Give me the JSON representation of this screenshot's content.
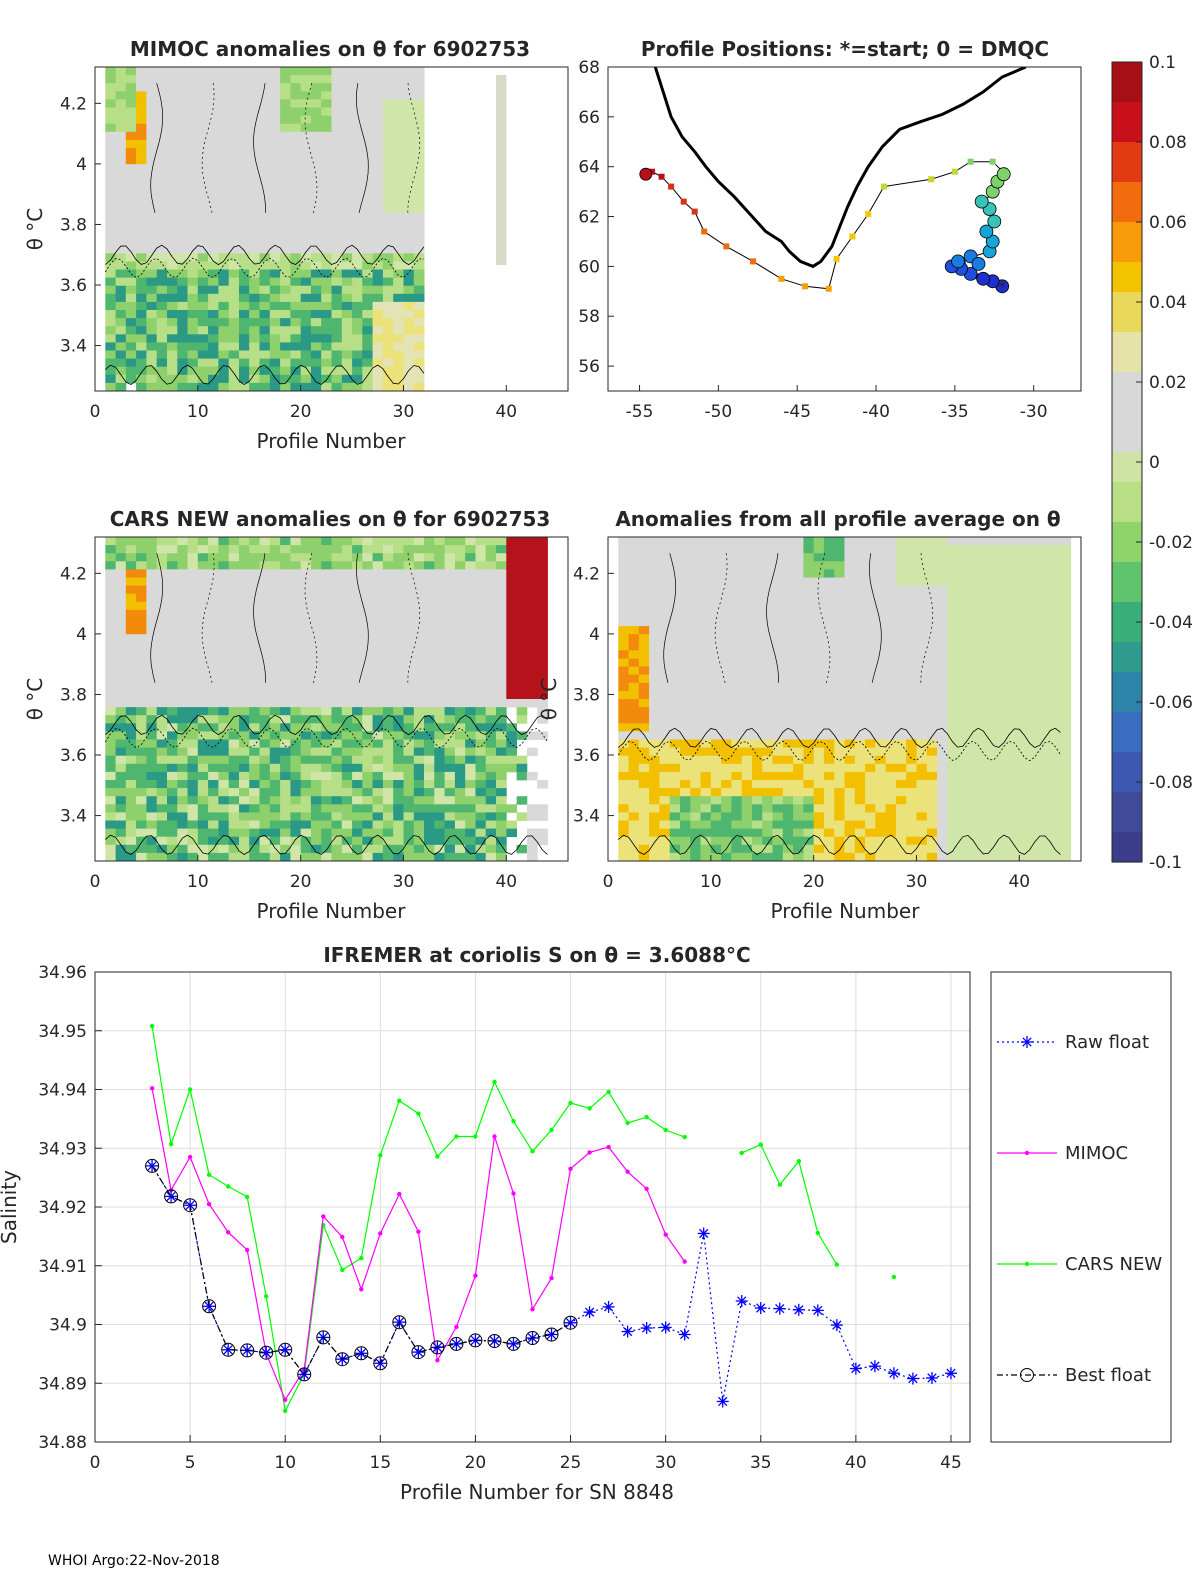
{
  "footer": "WHOI Argo:22-Nov-2018",
  "panels": {
    "mimoc": {
      "title": "MIMOC anomalies on θ  for 6902753",
      "xlabel": "Profile Number",
      "ylabel": "θ °C",
      "xlim": [
        0,
        46
      ],
      "ylim": [
        3.25,
        4.32
      ],
      "xticks": [
        "0",
        "10",
        "20",
        "30",
        "40"
      ],
      "yticks": [
        "3.4",
        "3.6",
        "3.8",
        "4",
        "4.2"
      ]
    },
    "positions": {
      "title": "Profile Positions: *=start; 0 = DMQC",
      "xticks": [
        "-55",
        "-50",
        "-45",
        "-40",
        "-35",
        "-30"
      ],
      "yticks": [
        "56",
        "58",
        "60",
        "62",
        "64",
        "66",
        "68"
      ],
      "xlim": [
        -57,
        -27
      ],
      "ylim": [
        55,
        68
      ],
      "track": [
        [
          -32,
          59.2
        ],
        [
          -32.5,
          59.4
        ],
        [
          -33.5,
          59.6
        ],
        [
          -34.2,
          59.8
        ],
        [
          -35.0,
          60.0
        ],
        [
          -34.5,
          60.2
        ],
        [
          -33.8,
          60.4
        ],
        [
          -32.8,
          60.6
        ],
        [
          -32.5,
          61.0
        ],
        [
          -33.0,
          61.4
        ],
        [
          -32.4,
          61.8
        ],
        [
          -32.8,
          62.3
        ],
        [
          -33.2,
          62.6
        ],
        [
          -32.5,
          63.0
        ],
        [
          -32.2,
          63.4
        ],
        [
          -31.8,
          63.7
        ],
        [
          -32.6,
          64.2
        ],
        [
          -34.0,
          64.2
        ],
        [
          -35.0,
          63.8
        ],
        [
          -36.5,
          63.5
        ],
        [
          -39.5,
          63.2
        ],
        [
          -40.5,
          62.1
        ],
        [
          -41.5,
          61.2
        ],
        [
          -42.5,
          60.3
        ],
        [
          -43.0,
          59.1
        ],
        [
          -44.5,
          59.2
        ],
        [
          -46.0,
          59.5
        ],
        [
          -47.8,
          60.2
        ],
        [
          -49.5,
          60.8
        ],
        [
          -50.9,
          61.4
        ],
        [
          -51.5,
          62.2
        ],
        [
          -52.2,
          62.6
        ],
        [
          -53.0,
          63.2
        ],
        [
          -53.6,
          63.6
        ],
        [
          -54.2,
          63.8
        ],
        [
          -54.6,
          63.7
        ]
      ],
      "stations": [
        [
          -32,
          59.2
        ],
        [
          -32.6,
          59.4
        ],
        [
          -33.2,
          59.5
        ],
        [
          -34.0,
          59.7
        ],
        [
          -34.6,
          59.9
        ],
        [
          -35.2,
          60.0
        ],
        [
          -34.8,
          60.2
        ],
        [
          -34.0,
          60.4
        ],
        [
          -33.5,
          60.1
        ],
        [
          -32.8,
          60.6
        ],
        [
          -32.6,
          61.0
        ],
        [
          -33.0,
          61.4
        ],
        [
          -32.5,
          61.8
        ],
        [
          -32.8,
          62.3
        ],
        [
          -33.3,
          62.6
        ],
        [
          -32.6,
          63.0
        ],
        [
          -32.3,
          63.4
        ],
        [
          -31.9,
          63.7
        ]
      ],
      "coast": [
        [
          -54,
          68
        ],
        [
          -53.5,
          67
        ],
        [
          -53,
          66
        ],
        [
          -52.3,
          65.2
        ],
        [
          -51.5,
          64.6
        ],
        [
          -50.8,
          64
        ],
        [
          -50,
          63.4
        ],
        [
          -49,
          62.8
        ],
        [
          -48,
          62.1
        ],
        [
          -47,
          61.4
        ],
        [
          -46,
          61
        ],
        [
          -45.5,
          60.6
        ],
        [
          -44.8,
          60.2
        ],
        [
          -44,
          60
        ],
        [
          -43.5,
          60.2
        ],
        [
          -42.8,
          60.8
        ],
        [
          -42.3,
          61.6
        ],
        [
          -41.8,
          62.4
        ],
        [
          -41.2,
          63.2
        ],
        [
          -40.5,
          64
        ],
        [
          -39.6,
          64.8
        ],
        [
          -38.5,
          65.5
        ],
        [
          -37.2,
          65.8
        ],
        [
          -35.8,
          66.1
        ],
        [
          -34.5,
          66.5
        ],
        [
          -33.2,
          67
        ],
        [
          -32,
          67.6
        ],
        [
          -30.5,
          68
        ]
      ]
    },
    "cars": {
      "title": "CARS NEW anomalies on θ for 6902753",
      "xlabel": "Profile Number",
      "ylabel": "θ °C",
      "xlim": [
        0,
        46
      ],
      "ylim": [
        3.25,
        4.32
      ],
      "xticks": [
        "0",
        "10",
        "20",
        "30",
        "40"
      ],
      "yticks": [
        "3.4",
        "3.6",
        "3.8",
        "4",
        "4.2"
      ]
    },
    "average": {
      "title": "Anomalies from all profile average on θ",
      "xlabel": "Profile Number",
      "ylabel": "θ °C",
      "xlim": [
        0,
        46
      ],
      "ylim": [
        3.25,
        4.32
      ],
      "xticks": [
        "0",
        "10",
        "20",
        "30",
        "40"
      ],
      "yticks": [
        "3.4",
        "3.6",
        "3.8",
        "4",
        "4.2"
      ]
    }
  },
  "colorbar": {
    "ticks": [
      "0.1",
      "0.08",
      "0.06",
      "0.04",
      "0.02",
      "0",
      "-0.02",
      "-0.04",
      "-0.06",
      "-0.08",
      "-0.1"
    ],
    "colors": [
      "#352a87",
      "#0f5cdd",
      "#1481d6",
      "#06a4ca",
      "#2eb7a4",
      "#87bf77",
      "#d1bb59",
      "#fec832",
      "#f9fb0e",
      "#ff8c00",
      "#d81b1b",
      "#a50f15"
    ]
  },
  "chart_data": {
    "type": "line",
    "title": "IFREMER at coriolis S on θ = 3.6088°C",
    "xlabel": "Profile Number for SN 8848",
    "ylabel": "Salinity",
    "xlim": [
      0,
      46
    ],
    "ylim": [
      34.88,
      34.96
    ],
    "xticks": [
      "0",
      "5",
      "10",
      "15",
      "20",
      "25",
      "30",
      "35",
      "40",
      "45"
    ],
    "yticks": [
      "34.88",
      "34.89",
      "34.9",
      "34.91",
      "34.92",
      "34.93",
      "34.94",
      "34.95",
      "34.96"
    ],
    "series": [
      {
        "name": "Raw float",
        "color": "#0000ff",
        "x": [
          3,
          4,
          5,
          6,
          7,
          8,
          9,
          10,
          11,
          12,
          13,
          14,
          15,
          16,
          17,
          18,
          19,
          20,
          21,
          22,
          23,
          24,
          25,
          26,
          27,
          28,
          29,
          30,
          31,
          32,
          33,
          34,
          35,
          36,
          37,
          38,
          39,
          40,
          41,
          42,
          43,
          44,
          45
        ],
        "y": [
          34.927,
          34.9218,
          34.9203,
          34.9031,
          34.8957,
          34.8956,
          34.8952,
          34.8957,
          34.8915,
          34.8978,
          34.8941,
          34.8951,
          34.8934,
          34.9004,
          34.8953,
          34.8961,
          34.8967,
          34.8973,
          34.8972,
          34.8967,
          34.8977,
          34.8983,
          34.9003,
          34.9021,
          34.903,
          34.8988,
          34.8994,
          34.8995,
          34.8983,
          34.9155,
          34.8869,
          34.904,
          34.9028,
          34.9027,
          34.9025,
          34.9024,
          34.8999,
          34.8925,
          34.8929,
          34.8917,
          34.8908,
          34.8909,
          34.8917
        ]
      },
      {
        "name": "MIMOC",
        "color": "#ff00ff",
        "x": [
          3,
          4,
          5,
          6,
          7,
          8,
          9,
          10,
          11,
          12,
          13,
          14,
          15,
          16,
          17,
          18,
          19,
          20,
          21,
          22,
          23,
          24,
          25,
          26,
          27,
          28,
          29,
          30,
          31
        ],
        "y": [
          34.9402,
          34.9229,
          34.9285,
          34.9205,
          34.9157,
          34.9127,
          34.8951,
          34.8872,
          34.8923,
          34.9184,
          34.9149,
          34.906,
          34.9155,
          34.9222,
          34.9158,
          34.8939,
          34.8996,
          34.9083,
          34.932,
          34.9223,
          34.9026,
          34.9079,
          34.9265,
          34.9293,
          34.9302,
          34.926,
          34.9231,
          34.9153,
          34.9107
        ]
      },
      {
        "name": "CARS NEW",
        "color": "#00ff00",
        "x": [
          3,
          4,
          5,
          6,
          7,
          8,
          9,
          10,
          11,
          12,
          13,
          14,
          15,
          16,
          17,
          18,
          19,
          20,
          21,
          22,
          23,
          24,
          25,
          26,
          27,
          28,
          29,
          30,
          31,
          null,
          34,
          35,
          36,
          37,
          38,
          39,
          null,
          42
        ],
        "y": [
          34.9508,
          34.9307,
          34.94,
          34.9255,
          34.9235,
          34.9217,
          34.9048,
          34.8853,
          34.8916,
          34.9169,
          34.9093,
          34.9113,
          34.9288,
          34.9381,
          34.9359,
          34.9286,
          34.932,
          34.932,
          34.9413,
          34.9346,
          34.9295,
          34.9331,
          34.9377,
          34.9368,
          34.9396,
          34.9343,
          34.9353,
          34.9331,
          34.9319,
          null,
          34.9292,
          34.9306,
          34.9238,
          34.9278,
          34.9156,
          34.9102,
          null,
          34.9081
        ]
      },
      {
        "name": "Best float",
        "color": "#000000",
        "x": [
          3,
          4,
          5,
          6,
          7,
          8,
          9,
          10,
          11,
          12,
          13,
          14,
          15,
          16,
          17,
          18,
          19,
          20,
          21,
          22,
          23,
          24,
          25
        ],
        "y": [
          34.927,
          34.9218,
          34.9203,
          34.9031,
          34.8957,
          34.8956,
          34.8952,
          34.8957,
          34.8915,
          34.8978,
          34.8941,
          34.8951,
          34.8934,
          34.9004,
          34.8953,
          34.8961,
          34.8967,
          34.8973,
          34.8972,
          34.8967,
          34.8977,
          34.8983,
          34.9003
        ]
      }
    ]
  }
}
